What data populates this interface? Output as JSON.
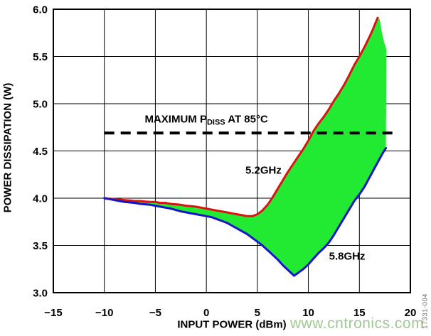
{
  "figure_code": "17331-004",
  "watermark": "www.cntronics.com",
  "colors": {
    "series_5_2ghz": "#dd1111",
    "series_5_8ghz": "#1414cc",
    "fill_between": "#22e932",
    "dashed_limit_line": "#000000",
    "axis": "#000000",
    "watermark": "#a0c891",
    "figure_code": "#6e6e6e"
  },
  "chart_data": {
    "type": "line",
    "xlabel": "INPUT POWER (dBm)",
    "ylabel": "POWER DISSIPATION (W)",
    "xlim": [
      -15,
      20
    ],
    "ylim": [
      3.0,
      6.0
    ],
    "grid": true,
    "x_ticks": [
      {
        "v": -15,
        "label": "−15"
      },
      {
        "v": -10,
        "label": "−10"
      },
      {
        "v": -5,
        "label": "−5"
      },
      {
        "v": 0,
        "label": "0"
      },
      {
        "v": 5,
        "label": "5"
      },
      {
        "v": 10,
        "label": "10"
      },
      {
        "v": 15,
        "label": "15"
      },
      {
        "v": 20,
        "label": "20"
      }
    ],
    "y_ticks": [
      {
        "v": 3.0,
        "label": "3.0"
      },
      {
        "v": 3.5,
        "label": "3.5"
      },
      {
        "v": 4.0,
        "label": "4.0"
      },
      {
        "v": 4.5,
        "label": "4.5"
      },
      {
        "v": 5.0,
        "label": "5.0"
      },
      {
        "v": 5.5,
        "label": "5.5"
      },
      {
        "v": 6.0,
        "label": "6.0"
      }
    ],
    "annotations": {
      "max_pdiss": {
        "text_main": "MAXIMUM P",
        "text_sub": "DISS",
        "text_rest": " AT 85°C",
        "value": 4.69,
        "x_start": -10,
        "x_end": 18.3,
        "label_x": 0.0,
        "label_y": 4.83
      },
      "series1_label": {
        "text": "5.2GHz",
        "x": 5.6,
        "y": 4.29
      },
      "series2_label": {
        "text": "5.8GHz",
        "x": 13.8,
        "y": 3.38
      }
    },
    "series": [
      {
        "name": "5.2GHz",
        "color": "#dd1111",
        "points": [
          [
            -10,
            4.0
          ],
          [
            -9.5,
            3.995
          ],
          [
            -9,
            3.99
          ],
          [
            -8.5,
            3.985
          ],
          [
            -8,
            3.98
          ],
          [
            -7.5,
            3.975
          ],
          [
            -7,
            3.97
          ],
          [
            -6.5,
            3.97
          ],
          [
            -6,
            3.965
          ],
          [
            -5.5,
            3.96
          ],
          [
            -5,
            3.96
          ],
          [
            -4.5,
            3.95
          ],
          [
            -4,
            3.95
          ],
          [
            -3.5,
            3.94
          ],
          [
            -3,
            3.935
          ],
          [
            -2.5,
            3.93
          ],
          [
            -2,
            3.92
          ],
          [
            -1.5,
            3.915
          ],
          [
            -1,
            3.91
          ],
          [
            -0.5,
            3.9
          ],
          [
            0,
            3.89
          ],
          [
            0.5,
            3.88
          ],
          [
            1,
            3.87
          ],
          [
            1.5,
            3.86
          ],
          [
            2,
            3.85
          ],
          [
            2.5,
            3.84
          ],
          [
            3,
            3.83
          ],
          [
            3.5,
            3.82
          ],
          [
            4,
            3.81
          ],
          [
            4.5,
            3.81
          ],
          [
            5,
            3.83
          ],
          [
            5.5,
            3.87
          ],
          [
            6,
            3.93
          ],
          [
            6.5,
            4.01
          ],
          [
            7,
            4.1
          ],
          [
            7.5,
            4.19
          ],
          [
            8,
            4.28
          ],
          [
            8.5,
            4.36
          ],
          [
            9,
            4.44
          ],
          [
            9.5,
            4.52
          ],
          [
            10,
            4.61
          ],
          [
            10.5,
            4.71
          ],
          [
            11,
            4.79
          ],
          [
            11.5,
            4.86
          ],
          [
            12,
            4.94
          ],
          [
            12.5,
            5.03
          ],
          [
            13,
            5.11
          ],
          [
            13.5,
            5.2
          ],
          [
            14,
            5.3
          ],
          [
            14.5,
            5.41
          ],
          [
            15,
            5.5
          ],
          [
            15.5,
            5.6
          ],
          [
            16,
            5.71
          ],
          [
            16.3,
            5.78
          ],
          [
            16.6,
            5.86
          ],
          [
            16.8,
            5.91
          ]
        ]
      },
      {
        "name": "5.8GHz",
        "color": "#1414cc",
        "points": [
          [
            -10,
            4.0
          ],
          [
            -9.5,
            3.99
          ],
          [
            -9,
            3.98
          ],
          [
            -8.5,
            3.97
          ],
          [
            -8,
            3.96
          ],
          [
            -7.5,
            3.955
          ],
          [
            -7,
            3.95
          ],
          [
            -6.5,
            3.94
          ],
          [
            -6,
            3.935
          ],
          [
            -5.5,
            3.93
          ],
          [
            -5,
            3.92
          ],
          [
            -4.5,
            3.91
          ],
          [
            -4,
            3.9
          ],
          [
            -3.5,
            3.89
          ],
          [
            -3,
            3.875
          ],
          [
            -2.5,
            3.86
          ],
          [
            -2,
            3.85
          ],
          [
            -1.5,
            3.84
          ],
          [
            -1,
            3.83
          ],
          [
            -0.5,
            3.82
          ],
          [
            0,
            3.81
          ],
          [
            0.5,
            3.8
          ],
          [
            1,
            3.78
          ],
          [
            1.5,
            3.76
          ],
          [
            2,
            3.74
          ],
          [
            2.5,
            3.71
          ],
          [
            3,
            3.68
          ],
          [
            3.5,
            3.65
          ],
          [
            4,
            3.62
          ],
          [
            4.5,
            3.58
          ],
          [
            5,
            3.54
          ],
          [
            5.5,
            3.5
          ],
          [
            6,
            3.45
          ],
          [
            6.5,
            3.4
          ],
          [
            7,
            3.35
          ],
          [
            7.5,
            3.29
          ],
          [
            8,
            3.24
          ],
          [
            8.3,
            3.21
          ],
          [
            8.6,
            3.18
          ],
          [
            9,
            3.21
          ],
          [
            9.5,
            3.25
          ],
          [
            10,
            3.3
          ],
          [
            10.5,
            3.36
          ],
          [
            11,
            3.42
          ],
          [
            11.5,
            3.47
          ],
          [
            12,
            3.53
          ],
          [
            12.5,
            3.61
          ],
          [
            13,
            3.7
          ],
          [
            13.5,
            3.79
          ],
          [
            14,
            3.88
          ],
          [
            14.5,
            3.97
          ],
          [
            15,
            4.04
          ],
          [
            15.5,
            4.12
          ],
          [
            16,
            4.22
          ],
          [
            16.5,
            4.32
          ],
          [
            17,
            4.42
          ],
          [
            17.3,
            4.48
          ],
          [
            17.6,
            4.53
          ]
        ]
      }
    ],
    "fill_between": {
      "color": "#22e932",
      "upper_extension": [
        [
          17.0,
          5.89
        ],
        [
          17.2,
          5.76
        ],
        [
          17.45,
          5.64
        ],
        [
          17.65,
          5.58
        ]
      ]
    }
  }
}
